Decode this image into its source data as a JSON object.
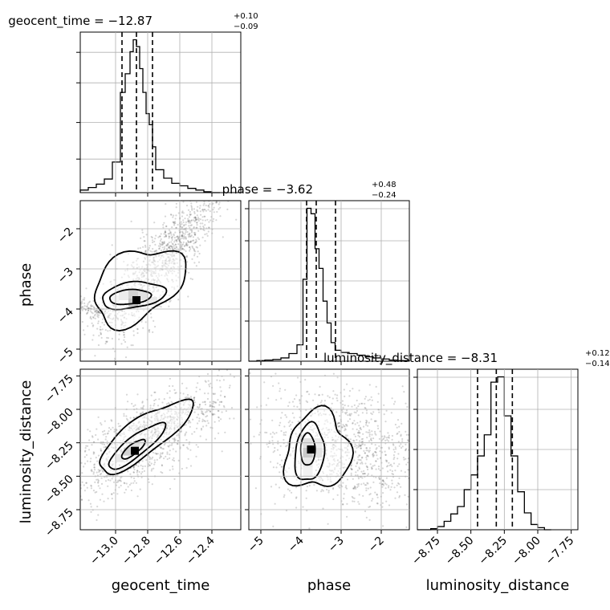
{
  "chart_data": {
    "type": "corner",
    "parameters": [
      "geocent_time",
      "phase",
      "luminosity_distance"
    ],
    "axis_labels": {
      "geocent_time": "geocent_time",
      "phase": "phase",
      "luminosity_distance": "luminosity_distance"
    },
    "ranges": {
      "geocent_time": [
        -13.22,
        -12.22
      ],
      "phase": [
        -5.3,
        -1.3
      ],
      "luminosity_distance": [
        -8.9,
        -7.7
      ]
    },
    "ticks": {
      "geocent_time": [
        -13.0,
        -12.8,
        -12.6,
        -12.4
      ],
      "phase": [
        -5,
        -4,
        -3,
        -2
      ],
      "luminosity_distance": [
        -8.75,
        -8.5,
        -8.25,
        -8.0,
        -7.75
      ]
    },
    "tick_labels": {
      "geocent_time": [
        "−13.0",
        "−12.8",
        "−12.6",
        "−12.4"
      ],
      "phase": [
        "−5",
        "−4",
        "−3",
        "−2"
      ],
      "luminosity_distance": [
        "−8.75",
        "−8.50",
        "−8.25",
        "−8.00",
        "−7.75"
      ]
    },
    "titles": [
      {
        "main": "geocent_time = −12.87",
        "sup": "+0.10",
        "sub": "−0.09"
      },
      {
        "main": "phase = −3.62",
        "sup": "+0.48",
        "sub": "−0.24"
      },
      {
        "main": "luminosity_distance = −8.31",
        "sup": "+0.12",
        "sub": "−0.14"
      }
    ],
    "quantiles": {
      "geocent_time": [
        -12.96,
        -12.87,
        -12.77
      ],
      "phase": [
        -3.86,
        -3.62,
        -3.14
      ],
      "luminosity_distance": [
        -8.45,
        -8.31,
        -8.19
      ]
    },
    "histograms": {
      "geocent_time": {
        "edges": [
          -13.22,
          -13.17,
          -13.12,
          -13.07,
          -13.02,
          -12.97,
          -12.94,
          -12.91,
          -12.89,
          -12.87,
          -12.85,
          -12.83,
          -12.81,
          -12.79,
          -12.77,
          -12.75,
          -12.7,
          -12.65,
          -12.6,
          -12.55,
          -12.5,
          -12.45,
          -12.4,
          -12.35
        ],
        "counts": [
          3,
          6,
          10,
          16,
          36,
          118,
          140,
          166,
          180,
          172,
          146,
          118,
          93,
          80,
          54,
          27,
          17,
          11,
          8,
          5,
          3,
          1,
          0
        ]
      },
      "phase": {
        "edges": [
          -5.3,
          -5.1,
          -4.9,
          -4.7,
          -4.5,
          -4.3,
          -4.1,
          -3.95,
          -3.85,
          -3.75,
          -3.65,
          -3.55,
          -3.45,
          -3.35,
          -3.25,
          -3.15,
          -3.0,
          -2.8,
          -2.6,
          -2.4,
          -2.2,
          -2.0,
          -1.8,
          -1.6,
          -1.3
        ],
        "counts": [
          0,
          1,
          2,
          3,
          6,
          14,
          30,
          150,
          280,
          270,
          206,
          170,
          110,
          70,
          34,
          20,
          16,
          14,
          11,
          8,
          6,
          4,
          2,
          1
        ]
      },
      "luminosity_distance": {
        "edges": [
          -8.9,
          -8.8,
          -8.75,
          -8.7,
          -8.65,
          -8.6,
          -8.55,
          -8.5,
          -8.45,
          -8.4,
          -8.35,
          -8.3,
          -8.25,
          -8.2,
          -8.15,
          -8.1,
          -8.05,
          -8.0,
          -7.95,
          -7.9
        ],
        "counts": [
          0,
          1,
          3,
          8,
          15,
          22,
          38,
          52,
          70,
          90,
          140,
          145,
          108,
          70,
          36,
          16,
          5,
          2,
          0
        ]
      }
    },
    "joint": {
      "phase_vs_geocent_time": {
        "peak": [
          -12.87,
          -3.78
        ],
        "contour_levels": [
          "inner",
          "middle",
          "outer"
        ]
      },
      "luminosity_distance_vs_geocent_time": {
        "peak": [
          -12.88,
          -8.31
        ],
        "contour_levels": [
          "inner",
          "middle",
          "outer"
        ]
      },
      "luminosity_distance_vs_phase": {
        "peak": [
          -3.75,
          -8.3
        ],
        "contour_levels": [
          "inner",
          "middle",
          "outer"
        ]
      }
    },
    "grid": true
  }
}
